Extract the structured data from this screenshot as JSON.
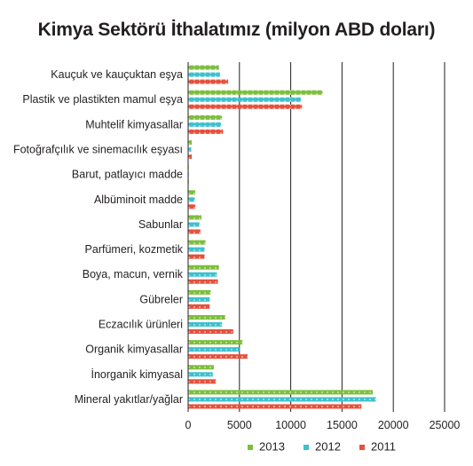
{
  "chart_data": {
    "type": "bar",
    "orientation": "horizontal",
    "title": "Kimya Sektörü İthalatımız (milyon ABD doları)",
    "xlabel": "",
    "ylabel": "",
    "xlim": [
      0,
      25000
    ],
    "x_ticks": [
      "0",
      "5000",
      "10000",
      "15000",
      "20000",
      "25000"
    ],
    "grid": "vertical gridlines",
    "legend_position": "bottom",
    "categories": [
      "Kauçuk ve kauçuktan eşya",
      "Plastik ve plastikten mamul eşya",
      "Muhtelif kimyasallar",
      "Fotoğrafçılık ve sinemacılık eşyası",
      "Barut, patlayıcı madde",
      "Albüminoit madde",
      "Sabunlar",
      "Parfümeri, kozmetik",
      "Boya, macun, vernik",
      "Gübreler",
      "Eczacılık ürünleri",
      "Organik kimyasallar",
      "İnorganik kimyasal",
      "Mineral yakıtlar/yağlar"
    ],
    "series": [
      {
        "name": "2013",
        "color": "#7dbe3c",
        "values": [
          3000,
          13100,
          3300,
          350,
          60,
          700,
          1300,
          1700,
          3000,
          2200,
          3600,
          5300,
          2500,
          18000
        ]
      },
      {
        "name": "2012",
        "color": "#3dc1cf",
        "values": [
          3100,
          11000,
          3200,
          300,
          60,
          650,
          1100,
          1600,
          2800,
          2100,
          3300,
          5000,
          2400,
          18300
        ]
      },
      {
        "name": "2011",
        "color": "#e5513c",
        "values": [
          3900,
          11100,
          3400,
          350,
          60,
          700,
          1200,
          1600,
          2900,
          2100,
          4400,
          5800,
          2700,
          16900
        ]
      }
    ]
  }
}
